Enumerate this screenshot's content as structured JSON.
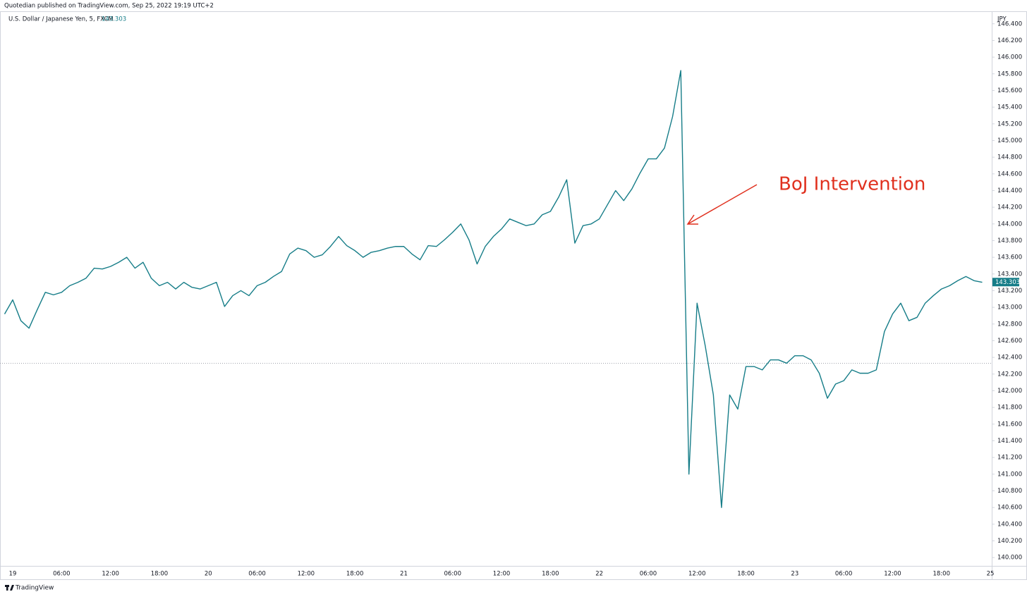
{
  "chart_data": {
    "type": "line",
    "publisher": "Quotedian published on TradingView.com, Sep 25, 2022 19:19 UTC+2",
    "title": "U.S. Dollar / Japanese Yen, 5, FXCM",
    "last_value": 143.303,
    "currency": "JPY",
    "annotation": "BoJ Intervention",
    "brand": "TradingView",
    "color": "#167d88",
    "annotation_color": "#e0301e",
    "baseline": 142.33,
    "categories": [
      null,
      "19",
      null,
      null,
      null,
      null,
      null,
      "06:00",
      null,
      null,
      null,
      null,
      null,
      "12:00",
      null,
      null,
      null,
      null,
      null,
      "18:00",
      null,
      null,
      null,
      null,
      null,
      "20",
      null,
      null,
      null,
      null,
      null,
      "06:00",
      null,
      null,
      null,
      null,
      null,
      "12:00",
      null,
      null,
      null,
      null,
      null,
      "18:00",
      null,
      null,
      null,
      null,
      null,
      "21",
      null,
      null,
      null,
      null,
      null,
      "06:00",
      null,
      null,
      null,
      null,
      null,
      "12:00",
      null,
      null,
      null,
      null,
      null,
      "18:00",
      null,
      null,
      null,
      null,
      null,
      "22",
      null,
      null,
      null,
      null,
      null,
      "06:00",
      null,
      null,
      null,
      null,
      null,
      "12:00",
      null,
      null,
      null,
      null,
      null,
      "18:00",
      null,
      null,
      null,
      null,
      null,
      "23",
      null,
      null,
      null,
      null,
      null,
      "06:00",
      null,
      null,
      null,
      null,
      null,
      "12:00",
      null,
      null,
      null,
      null,
      null,
      "18:00",
      null,
      null,
      null,
      null,
      null,
      "25"
    ],
    "values": [
      142.92,
      143.09,
      142.84,
      142.75,
      142.97,
      143.18,
      143.15,
      143.18,
      143.26,
      143.3,
      143.35,
      143.47,
      143.46,
      143.49,
      143.54,
      143.6,
      143.47,
      143.54,
      143.35,
      143.26,
      143.3,
      143.22,
      143.3,
      143.24,
      143.22,
      143.26,
      143.3,
      143.01,
      143.14,
      143.2,
      143.14,
      143.26,
      143.3,
      143.37,
      143.43,
      143.64,
      143.71,
      143.68,
      143.6,
      143.63,
      143.73,
      143.85,
      143.74,
      143.68,
      143.6,
      143.66,
      143.68,
      143.71,
      143.73,
      143.73,
      143.64,
      143.57,
      143.74,
      143.73,
      143.81,
      143.9,
      144.0,
      143.81,
      143.52,
      143.73,
      143.85,
      143.94,
      144.06,
      144.02,
      143.98,
      144.0,
      144.11,
      144.15,
      144.32,
      144.53,
      143.77,
      143.98,
      144.0,
      144.06,
      144.23,
      144.4,
      144.28,
      144.42,
      144.61,
      144.78,
      144.78,
      144.91,
      145.29,
      145.84,
      141.0,
      143.05,
      142.54,
      141.95,
      140.6,
      141.95,
      141.78,
      142.29,
      142.29,
      142.25,
      142.37,
      142.37,
      142.33,
      142.42,
      142.42,
      142.37,
      142.21,
      141.91,
      142.08,
      142.12,
      142.25,
      142.21,
      142.21,
      142.25,
      142.71,
      142.92,
      143.05,
      142.84,
      142.88,
      143.05,
      143.14,
      143.22,
      143.26,
      143.32,
      143.37,
      143.32,
      143.3,
      null
    ],
    "ylim": [
      139.9,
      146.55
    ],
    "yticks": [
      {
        "value": 140.0,
        "label": "140.000"
      },
      {
        "value": 140.2,
        "label": "140.200"
      },
      {
        "value": 140.4,
        "label": "140.400"
      },
      {
        "value": 140.6,
        "label": "140.600"
      },
      {
        "value": 140.8,
        "label": "140.800"
      },
      {
        "value": 141.0,
        "label": "141.000"
      },
      {
        "value": 141.2,
        "label": "141.200"
      },
      {
        "value": 141.4,
        "label": "141.400"
      },
      {
        "value": 141.6,
        "label": "141.600"
      },
      {
        "value": 141.8,
        "label": "141.800"
      },
      {
        "value": 142.0,
        "label": "142.000"
      },
      {
        "value": 142.2,
        "label": "142.200"
      },
      {
        "value": 142.4,
        "label": "142.400"
      },
      {
        "value": 142.6,
        "label": "142.600"
      },
      {
        "value": 142.8,
        "label": "142.800"
      },
      {
        "value": 143.0,
        "label": "143.000"
      },
      {
        "value": 143.2,
        "label": "143.200"
      },
      {
        "value": 143.4,
        "label": "143.400"
      },
      {
        "value": 143.6,
        "label": "143.600"
      },
      {
        "value": 143.8,
        "label": "143.800"
      },
      {
        "value": 144.0,
        "label": "144.000"
      },
      {
        "value": 144.2,
        "label": "144.200"
      },
      {
        "value": 144.4,
        "label": "144.400"
      },
      {
        "value": 144.6,
        "label": "144.600"
      },
      {
        "value": 144.8,
        "label": "144.800"
      },
      {
        "value": 145.0,
        "label": "145.000"
      },
      {
        "value": 145.2,
        "label": "145.200"
      },
      {
        "value": 145.4,
        "label": "145.400"
      },
      {
        "value": 145.6,
        "label": "145.600"
      },
      {
        "value": 145.8,
        "label": "145.800"
      },
      {
        "value": 146.0,
        "label": "146.000"
      },
      {
        "value": 146.2,
        "label": "146.200"
      },
      {
        "value": 146.4,
        "label": "146.400"
      }
    ]
  }
}
